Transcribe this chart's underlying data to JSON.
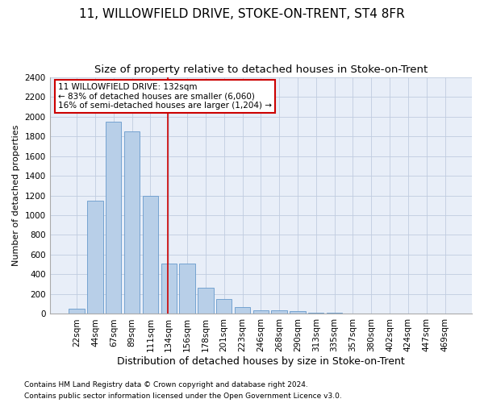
{
  "title": "11, WILLOWFIELD DRIVE, STOKE-ON-TRENT, ST4 8FR",
  "subtitle": "Size of property relative to detached houses in Stoke-on-Trent",
  "xlabel": "Distribution of detached houses by size in Stoke-on-Trent",
  "ylabel": "Number of detached properties",
  "footnote1": "Contains HM Land Registry data © Crown copyright and database right 2024.",
  "footnote2": "Contains public sector information licensed under the Open Government Licence v3.0.",
  "bar_labels": [
    "22sqm",
    "44sqm",
    "67sqm",
    "89sqm",
    "111sqm",
    "134sqm",
    "156sqm",
    "178sqm",
    "201sqm",
    "223sqm",
    "246sqm",
    "268sqm",
    "290sqm",
    "313sqm",
    "335sqm",
    "357sqm",
    "380sqm",
    "402sqm",
    "424sqm",
    "447sqm",
    "469sqm"
  ],
  "bar_values": [
    50,
    1150,
    1950,
    1850,
    1200,
    510,
    510,
    265,
    150,
    70,
    40,
    35,
    30,
    15,
    10,
    5,
    5,
    2,
    3,
    1,
    1
  ],
  "bar_color": "#b8cfe8",
  "bar_edge_color": "#6699cc",
  "red_line_x": 4.93,
  "annotation_line1": "11 WILLOWFIELD DRIVE: 132sqm",
  "annotation_line2": "← 83% of detached houses are smaller (6,060)",
  "annotation_line3": "16% of semi-detached houses are larger (1,204) →",
  "ylim": [
    0,
    2400
  ],
  "yticks": [
    0,
    200,
    400,
    600,
    800,
    1000,
    1200,
    1400,
    1600,
    1800,
    2000,
    2200,
    2400
  ],
  "title_fontsize": 11,
  "subtitle_fontsize": 9.5,
  "xlabel_fontsize": 9,
  "ylabel_fontsize": 8,
  "tick_fontsize": 7.5,
  "annotation_fontsize": 7.5,
  "footnote_fontsize": 6.5,
  "background_color": "#ffffff",
  "plot_bg_color": "#e8eef8",
  "grid_color": "#c0cce0",
  "annotation_box_color": "#ffffff",
  "annotation_box_edge": "#cc0000"
}
